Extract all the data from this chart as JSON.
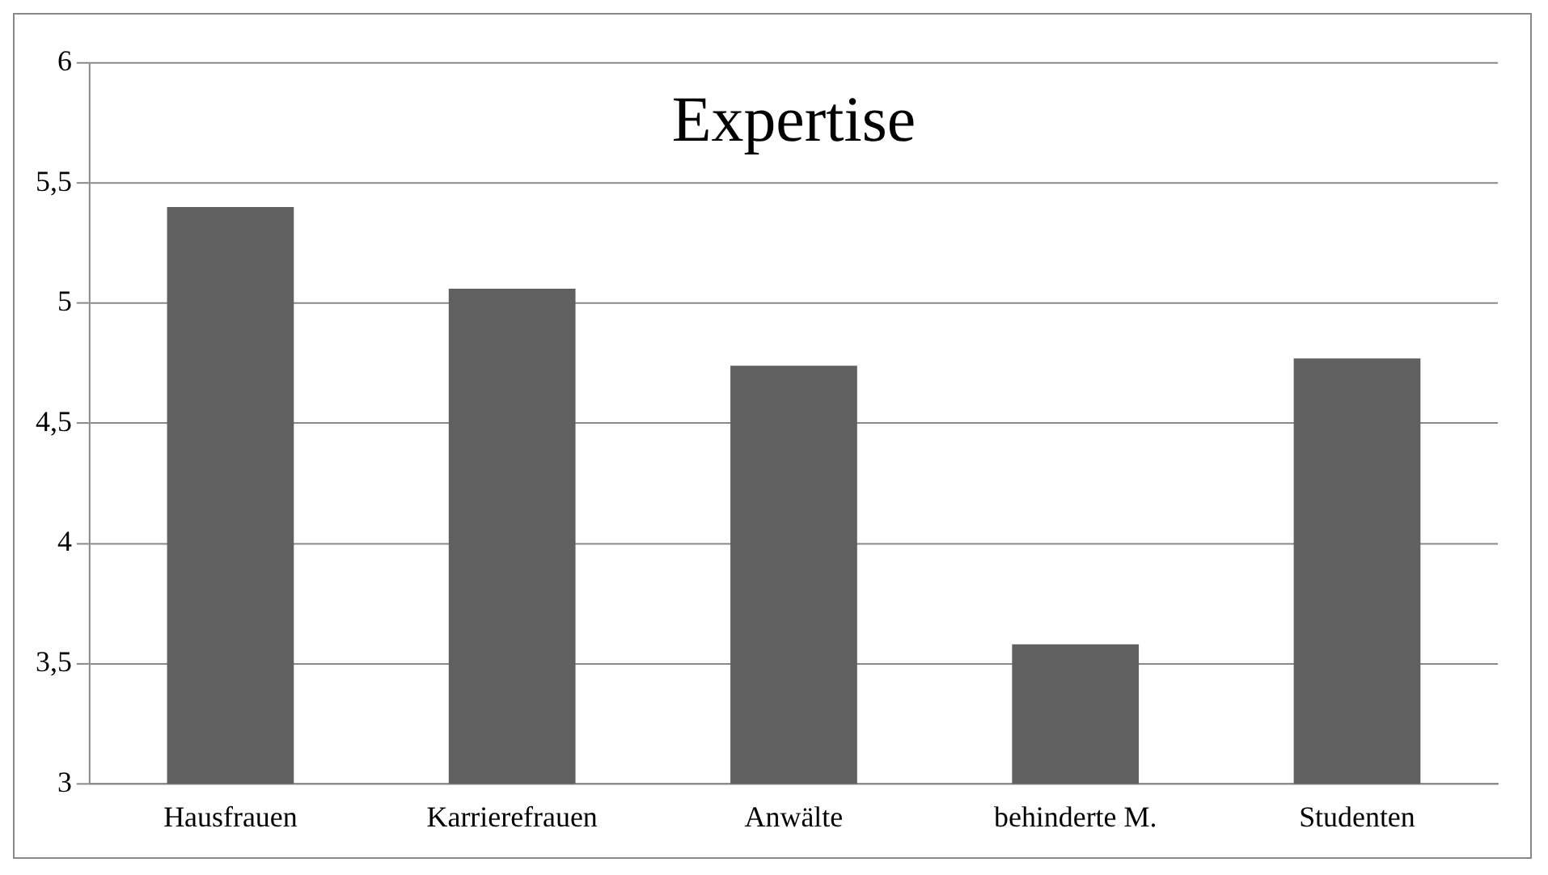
{
  "chart_data": {
    "type": "bar",
    "title": "Expertise",
    "categories": [
      "Hausfrauen",
      "Karrierefrauen",
      "Anwälte",
      "behinderte M.",
      "Studenten"
    ],
    "values": [
      5.4,
      5.06,
      4.74,
      3.58,
      4.77
    ],
    "color": "#606060",
    "ylim": [
      3,
      6
    ],
    "yticks": [
      3,
      {
        "value": 3.5,
        "label": "3,5"
      },
      4,
      {
        "value": 4.5,
        "label": "4,5"
      },
      5,
      {
        "value": 5.5,
        "label": "5,5"
      },
      6
    ],
    "grid": "y",
    "legend": false
  }
}
